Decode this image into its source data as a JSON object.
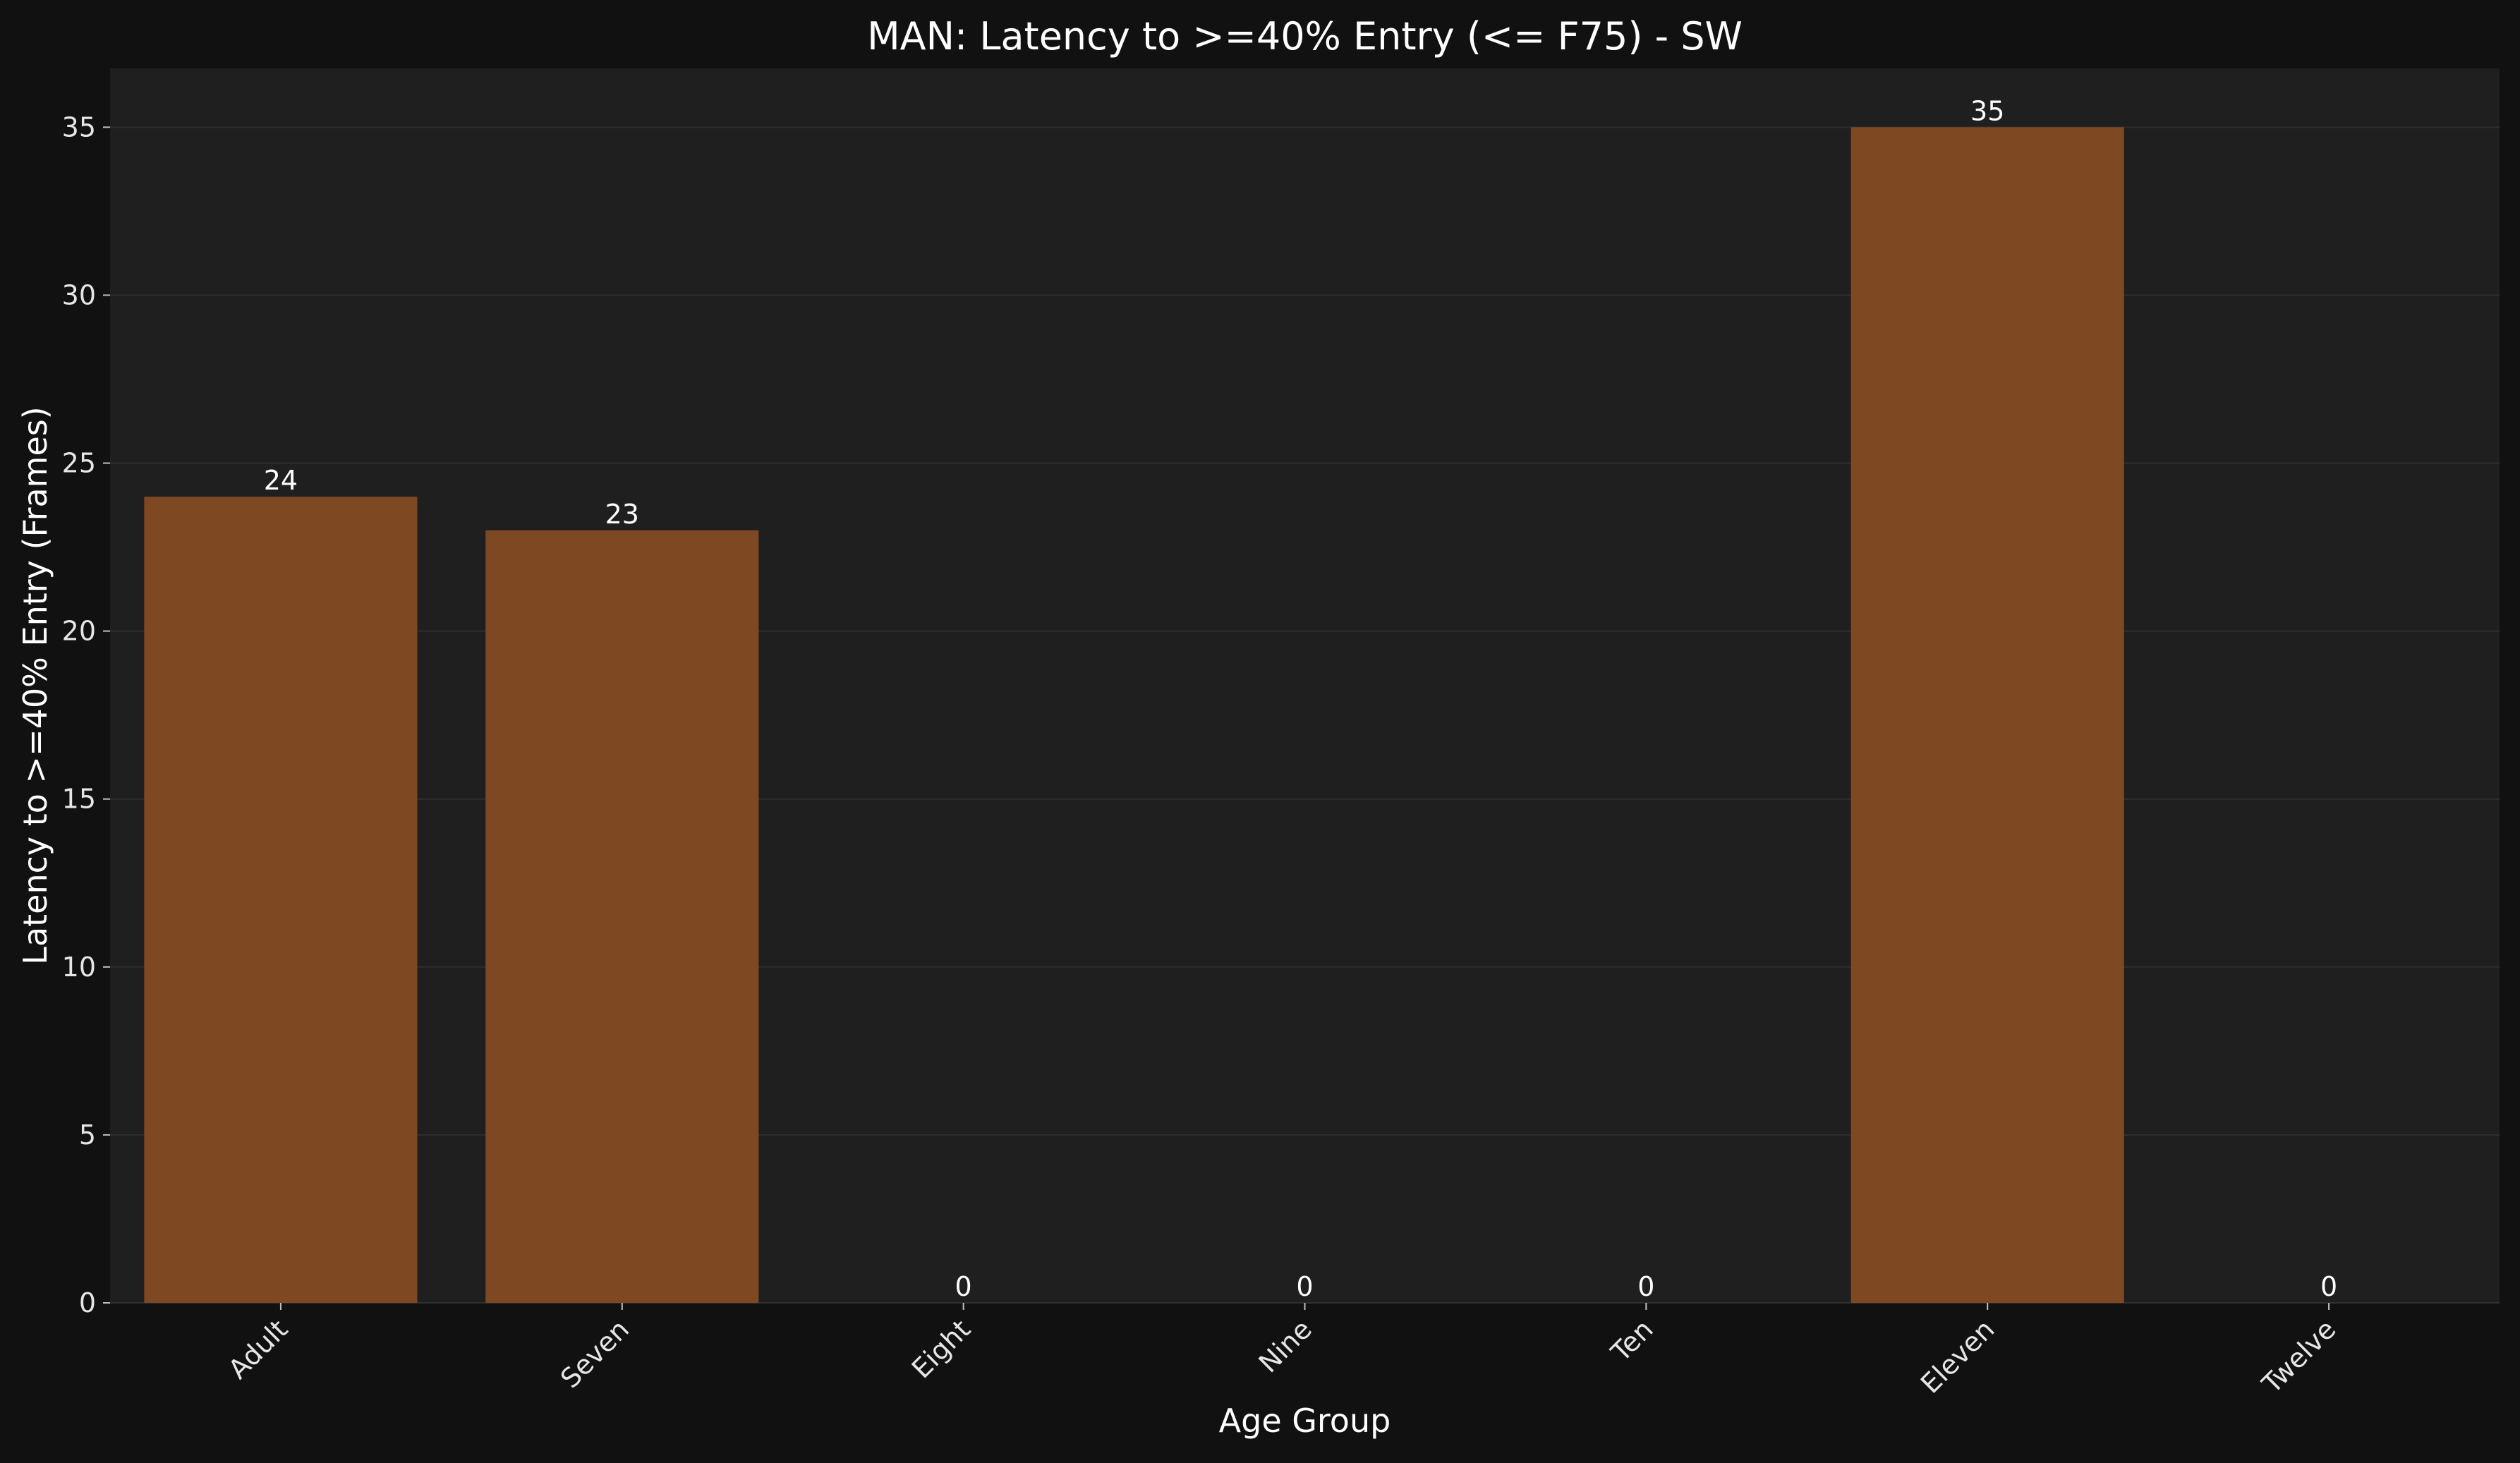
{
  "chart_data": {
    "type": "bar",
    "title": "MAN: Latency to >=40% Entry (<= F75) - SW",
    "xlabel": "Age Group",
    "ylabel": "Latency to >=40% Entry (Frames)",
    "categories": [
      "Adult",
      "Seven",
      "Eight",
      "Nine",
      "Ten",
      "Eleven",
      "Twelve"
    ],
    "values": [
      24,
      23,
      0,
      0,
      0,
      35,
      0
    ],
    "data_labels": [
      "24",
      "23",
      "0",
      "0",
      "0",
      "35",
      "0"
    ],
    "ylim": [
      0,
      36.75
    ],
    "yticks": [
      0,
      5,
      10,
      15,
      20,
      25,
      30,
      35
    ],
    "ytick_labels": [
      "0",
      "5",
      "10",
      "15",
      "20",
      "25",
      "30",
      "35"
    ],
    "grid": true,
    "legend": "none",
    "colors": {
      "background": "#111111",
      "plot_background": "#1f1f1f",
      "bar": "#7e4823",
      "grid": "#2f2f2f",
      "text": "#ffffff"
    }
  }
}
